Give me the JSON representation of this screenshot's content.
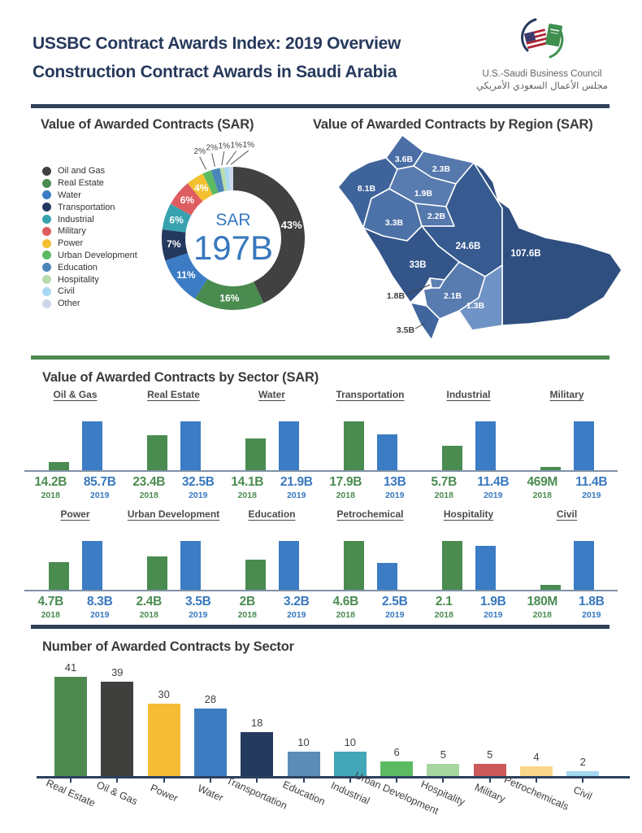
{
  "header": {
    "title_line1": "USSBC Contract Awards Index: 2019 Overview",
    "title_line2": "Construction Contract Awards in Saudi Arabia",
    "logo": {
      "org_en": "U.S.-Saudi Business Council",
      "org_ar": "مجلس الأعمال السعودي الأمريكي"
    }
  },
  "chart_data": [
    {
      "id": "value_donut",
      "type": "pie",
      "title": "Value of Awarded Contracts (SAR)",
      "center_label": "SAR",
      "center_value": "197B",
      "center_color": "#3878be",
      "legend_position": "left",
      "slices": [
        {
          "label": "Oil and Gas",
          "pct": 43,
          "color": "#414141"
        },
        {
          "label": "Real Estate",
          "pct": 16,
          "color": "#4a8b50"
        },
        {
          "label": "Water",
          "pct": 11,
          "color": "#3b7cc4"
        },
        {
          "label": "Transportation",
          "pct": 7,
          "color": "#24395e"
        },
        {
          "label": "Industrial",
          "pct": 6,
          "color": "#38a3ae"
        },
        {
          "label": "Military",
          "pct": 6,
          "color": "#dd5d60"
        },
        {
          "label": "Power",
          "pct": 4,
          "color": "#f3c02f"
        },
        {
          "label": "Urban Development",
          "pct": 2,
          "color": "#5cba63"
        },
        {
          "label": "Education",
          "pct": 2,
          "color": "#4b86b8"
        },
        {
          "label": "Hospitality",
          "pct": 1,
          "color": "#b9dcad"
        },
        {
          "label": "Civil",
          "pct": 1,
          "color": "#a9d9f2"
        },
        {
          "label": "Other",
          "pct": 1,
          "color": "#cdd7e9"
        }
      ]
    },
    {
      "id": "region_map",
      "type": "choropleth-map",
      "title": "Value of Awarded Contracts by Region (SAR)",
      "regions": [
        {
          "value": "8.1B",
          "color": "#3f649c"
        },
        {
          "value": "3.6B",
          "color": "#4a6ea5"
        },
        {
          "value": "2.3B",
          "color": "#5578ad"
        },
        {
          "value": "1.9B",
          "color": "#587bb0"
        },
        {
          "value": "2.2B",
          "color": "#5578ad"
        },
        {
          "value": "3.3B",
          "color": "#4d72a8"
        },
        {
          "value": "24.6B",
          "color": "#375b90"
        },
        {
          "value": "107.6B",
          "color": "#2f4f80"
        },
        {
          "value": "33B",
          "color": "#33558a"
        },
        {
          "value": "1.8B",
          "color": "#5e81b5"
        },
        {
          "value": "2.1B",
          "color": "#587bb0"
        },
        {
          "value": "1.3B",
          "color": "#6f93c4"
        },
        {
          "value": "3.5B",
          "color": "#41669e"
        }
      ]
    },
    {
      "id": "sector_values",
      "type": "bar",
      "title": "Value of Awarded Contracts by Sector (SAR)",
      "series_years": [
        "2018",
        "2019"
      ],
      "year_colors": {
        "2018": "#4a8b50",
        "2019": "#3878be"
      },
      "sectors": [
        {
          "name": "Oil & Gas",
          "v2018_label": "14.2B",
          "v2018": 14.2,
          "v2019_label": "85.7B",
          "v2019": 85.7
        },
        {
          "name": "Real Estate",
          "v2018_label": "23.4B",
          "v2018": 23.4,
          "v2019_label": "32.5B",
          "v2019": 32.5
        },
        {
          "name": "Water",
          "v2018_label": "14.1B",
          "v2018": 14.1,
          "v2019_label": "21.9B",
          "v2019": 21.9
        },
        {
          "name": "Transportation",
          "v2018_label": "17.9B",
          "v2018": 17.9,
          "v2019_label": "13B",
          "v2019": 13
        },
        {
          "name": "Industrial",
          "v2018_label": "5.7B",
          "v2018": 5.7,
          "v2019_label": "11.4B",
          "v2019": 11.4
        },
        {
          "name": "Military",
          "v2018_label": "469M",
          "v2018": 0.469,
          "v2019_label": "11.4B",
          "v2019": 11.4
        },
        {
          "name": "Power",
          "v2018_label": "4.7B",
          "v2018": 4.7,
          "v2019_label": "8.3B",
          "v2019": 8.3
        },
        {
          "name": "Urban Development",
          "v2018_label": "2.4B",
          "v2018": 2.4,
          "v2019_label": "3.5B",
          "v2019": 3.5
        },
        {
          "name": "Education",
          "v2018_label": "2B",
          "v2018": 2,
          "v2019_label": "3.2B",
          "v2019": 3.2
        },
        {
          "name": "Petrochemical",
          "v2018_label": "4.6B",
          "v2018": 4.6,
          "v2019_label": "2.5B",
          "v2019": 2.5
        },
        {
          "name": "Hospitality",
          "v2018_label": "2.1",
          "v2018": 2.1,
          "v2019_label": "1.9B",
          "v2019": 1.9
        },
        {
          "name": "Civil",
          "v2018_label": "180M",
          "v2018": 0.18,
          "v2019_label": "1.8B",
          "v2019": 1.8
        }
      ]
    },
    {
      "id": "sector_counts",
      "type": "bar",
      "title": "Number of Awarded Contracts by Sector",
      "categories": [
        "Real Estate",
        "Oil & Gas",
        "Power",
        "Water",
        "Transportation",
        "Education",
        "Industrial",
        "Urban Development",
        "Hospitality",
        "Military",
        "Petrochemicals",
        "Civil"
      ],
      "values": [
        41,
        39,
        30,
        28,
        18,
        10,
        10,
        6,
        5,
        5,
        4,
        2
      ],
      "colors": [
        "#4e8a50",
        "#3f3f3e",
        "#f6bc35",
        "#3d7cc0",
        "#24395e",
        "#5b8cb8",
        "#44a7b8",
        "#5cba63",
        "#a8d6a0",
        "#cd5a5a",
        "#f8d78a",
        "#a5d9f2"
      ],
      "ylim": [
        0,
        41
      ],
      "grid": false,
      "value_labels": "above bars"
    }
  ]
}
